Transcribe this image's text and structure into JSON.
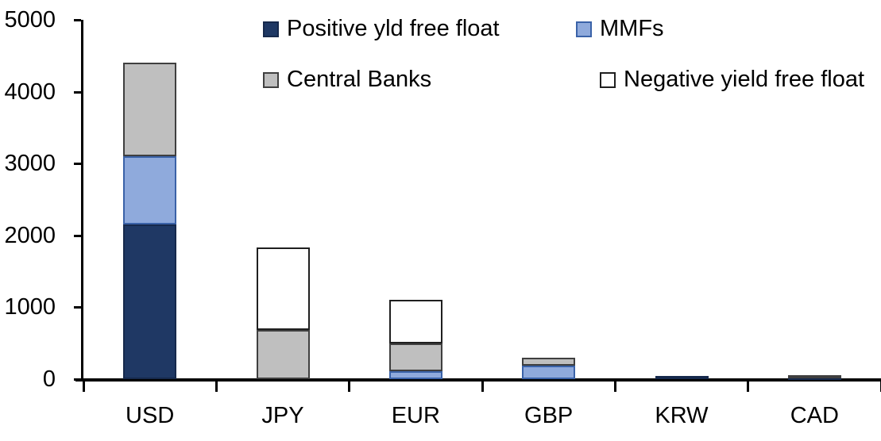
{
  "chart_data": {
    "type": "bar",
    "stacked": true,
    "title": "",
    "xlabel": "",
    "ylabel": "",
    "categories": [
      "USD",
      "JPY",
      "EUR",
      "GBP",
      "KRW",
      "CAD"
    ],
    "series": [
      {
        "name": "Positive yld free float",
        "color": "#1F3864",
        "border_color": "#16294C",
        "values": [
          2150,
          0,
          0,
          0,
          45,
          30
        ]
      },
      {
        "name": "MMFs",
        "color": "#8FAADC",
        "border_color": "#3A62A8",
        "values": [
          950,
          0,
          110,
          190,
          0,
          0
        ]
      },
      {
        "name": "Central Banks",
        "color": "#BFBFBF",
        "border_color": "#3F3F3F",
        "values": [
          1300,
          680,
          390,
          110,
          0,
          30
        ]
      },
      {
        "name": "Negative yield free float",
        "color": "#FFFFFF",
        "border_color": "#1F1F1F",
        "values": [
          0,
          1150,
          600,
          0,
          0,
          0
        ]
      }
    ],
    "ylim": [
      0,
      5000
    ],
    "yticks": [
      0,
      1000,
      2000,
      3000,
      4000,
      5000
    ],
    "grid": false,
    "legend_position": "top",
    "axis_color": "#000000",
    "text_color": "#000000"
  }
}
